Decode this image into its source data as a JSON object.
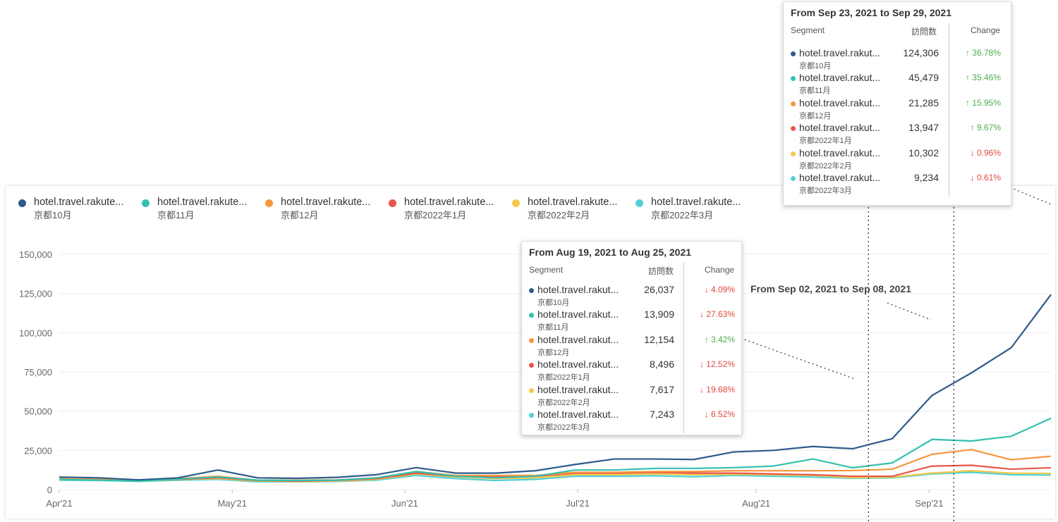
{
  "series_meta": [
    {
      "name": "hotel.travel.rakute...",
      "sub": "京都10月",
      "color": "#2d5b8a"
    },
    {
      "name": "hotel.travel.rakute...",
      "sub": "京都11月",
      "color": "#34c0b0"
    },
    {
      "name": "hotel.travel.rakute...",
      "sub": "京都12月",
      "color": "#f5963d"
    },
    {
      "name": "hotel.travel.rakute...",
      "sub": "京都2022年1月",
      "color": "#e8564d"
    },
    {
      "name": "hotel.travel.rakute...",
      "sub": "京都2022年2月",
      "color": "#f5c84a"
    },
    {
      "name": "hotel.travel.rakute...",
      "sub": "京都2022年3月",
      "color": "#4fd0d6"
    }
  ],
  "chart_data": {
    "type": "line",
    "title": "",
    "xlabel": "",
    "ylabel": "",
    "ylim": [
      0,
      150000
    ],
    "yticks": [
      0,
      25000,
      50000,
      75000,
      100000,
      125000,
      150000
    ],
    "ytick_labels": [
      "0",
      "25,000",
      "50,000",
      "75,000",
      "100,000",
      "125,000",
      "150,000"
    ],
    "xtick_labels": [
      "Apr'21",
      "May'21",
      "Jun'21",
      "Jul'21",
      "Aug'21",
      "Sep'21"
    ],
    "xtick_positions": [
      0,
      4.36,
      8.71,
      13.07,
      17.57,
      21.93
    ],
    "x": [
      0,
      1,
      2,
      3,
      4,
      5,
      6,
      7,
      8,
      9,
      10,
      11,
      12,
      13,
      14,
      15,
      16,
      17,
      18,
      19,
      20,
      21,
      22,
      23,
      24,
      25
    ],
    "series": [
      {
        "name": "京都10月",
        "values": [
          8000,
          7500,
          6200,
          7500,
          12500,
          7500,
          7200,
          7800,
          9500,
          14000,
          10500,
          10500,
          12000,
          16000,
          19500,
          19500,
          19200,
          24000,
          25000,
          27500,
          26037,
          32500,
          60000,
          74500,
          90500,
          124306
        ]
      },
      {
        "name": "京都11月",
        "values": [
          6500,
          6000,
          5500,
          6800,
          8000,
          6000,
          5800,
          6000,
          7500,
          11500,
          8500,
          7500,
          8500,
          12500,
          12500,
          13500,
          13500,
          14000,
          15000,
          19500,
          13909,
          17000,
          32000,
          31000,
          34000,
          45479
        ]
      },
      {
        "name": "京都12月",
        "values": [
          7000,
          6500,
          6000,
          7000,
          8500,
          6000,
          6000,
          6200,
          7500,
          11500,
          9000,
          9000,
          9000,
          11000,
          11000,
          11500,
          11500,
          12000,
          12000,
          12000,
          12154,
          13000,
          22500,
          25500,
          19000,
          21285
        ]
      },
      {
        "name": "京都2022年1月",
        "values": [
          6800,
          6200,
          5800,
          6600,
          7500,
          5800,
          5500,
          5900,
          7000,
          10500,
          8500,
          8000,
          8500,
          10500,
          10500,
          11000,
          10500,
          10500,
          10000,
          9500,
          8496,
          8500,
          15000,
          15500,
          13000,
          13947
        ]
      },
      {
        "name": "京都2022年2月",
        "values": [
          6500,
          6000,
          5500,
          6500,
          7000,
          5500,
          5200,
          5500,
          6500,
          10000,
          8000,
          7000,
          7500,
          9500,
          9500,
          10000,
          9500,
          9800,
          9500,
          9000,
          7617,
          8000,
          10500,
          12000,
          10500,
          10302
        ]
      },
      {
        "name": "京都2022年3月",
        "values": [
          6000,
          5800,
          5200,
          6000,
          6500,
          5000,
          5000,
          5200,
          6000,
          9000,
          7000,
          5800,
          6500,
          8500,
          8500,
          8800,
          8200,
          9000,
          8500,
          8000,
          7243,
          7500,
          10000,
          11000,
          9500,
          9234
        ]
      }
    ],
    "vlines_x": [
      20.4,
      22.55
    ]
  },
  "tooltip_aug": {
    "title": "From Aug 19, 2021 to Aug 25, 2021",
    "col_segment": "Segment",
    "col_visits": "訪問数",
    "col_change": "Change",
    "rows": [
      {
        "name": "hotel.travel.rakut...",
        "sub": "京都10月",
        "value": "26,037",
        "change": "↓ 4.09%",
        "dir": "down",
        "color": "#2d5b8a"
      },
      {
        "name": "hotel.travel.rakut...",
        "sub": "京都11月",
        "value": "13,909",
        "change": "↓ 27.63%",
        "dir": "down",
        "color": "#34c0b0"
      },
      {
        "name": "hotel.travel.rakut...",
        "sub": "京都12月",
        "value": "12,154",
        "change": "↑ 3.42%",
        "dir": "up",
        "color": "#f5963d"
      },
      {
        "name": "hotel.travel.rakut...",
        "sub": "京都2022年1月",
        "value": "8,496",
        "change": "↓ 12.52%",
        "dir": "down",
        "color": "#e8564d"
      },
      {
        "name": "hotel.travel.rakut...",
        "sub": "京都2022年2月",
        "value": "7,617",
        "change": "↓ 19.68%",
        "dir": "down",
        "color": "#f5c84a"
      },
      {
        "name": "hotel.travel.rakut...",
        "sub": "京都2022年3月",
        "value": "7,243",
        "change": "↓ 6.52%",
        "dir": "down",
        "color": "#4fd0d6"
      }
    ]
  },
  "tooltip_sep": {
    "title": "From Sep 23, 2021 to Sep 29, 2021",
    "col_segment": "Segment",
    "col_visits": "訪問数",
    "col_change": "Change",
    "rows": [
      {
        "name": "hotel.travel.rakut...",
        "sub": "京都10月",
        "value": "124,306",
        "change": "↑ 36.78%",
        "dir": "up",
        "color": "#2d5b8a"
      },
      {
        "name": "hotel.travel.rakut...",
        "sub": "京都11月",
        "value": "45,479",
        "change": "↑ 35.46%",
        "dir": "up",
        "color": "#34c0b0"
      },
      {
        "name": "hotel.travel.rakut...",
        "sub": "京都12月",
        "value": "21,285",
        "change": "↑ 15.95%",
        "dir": "up",
        "color": "#f5963d"
      },
      {
        "name": "hotel.travel.rakut...",
        "sub": "京都2022年1月",
        "value": "13,947",
        "change": "↑ 9.67%",
        "dir": "up",
        "color": "#e8564d"
      },
      {
        "name": "hotel.travel.rakut...",
        "sub": "京都2022年2月",
        "value": "10,302",
        "change": "↓ 0.96%",
        "dir": "down",
        "color": "#f5c84a"
      },
      {
        "name": "hotel.travel.rakut...",
        "sub": "京都2022年3月",
        "value": "9,234",
        "change": "↓ 0.61%",
        "dir": "down",
        "color": "#4fd0d6"
      }
    ]
  },
  "floating_label": "From Sep 02, 2021 to Sep 08, 2021"
}
